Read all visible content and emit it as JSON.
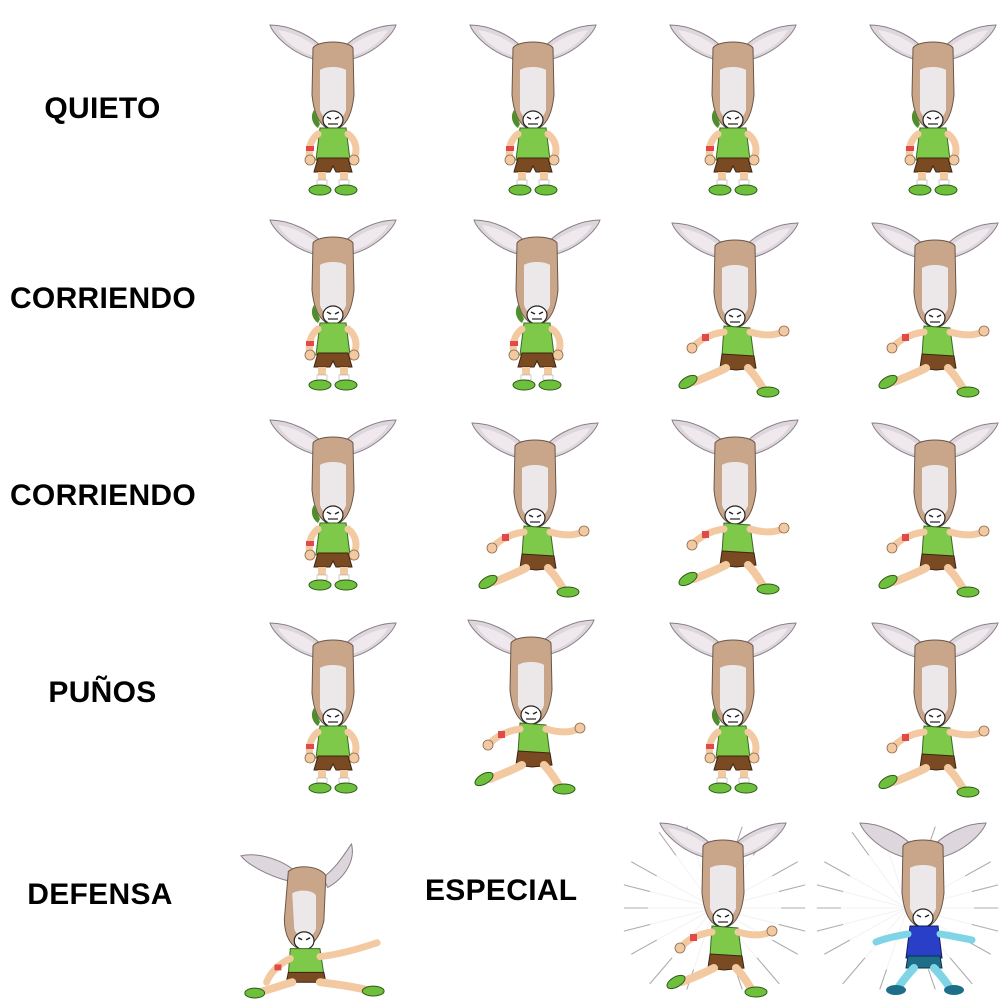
{
  "rows": [
    {
      "label": "QUIETO"
    },
    {
      "label": "CORRIENDO"
    },
    {
      "label": "CORRIENDO"
    },
    {
      "label": "PUÑOS"
    },
    {
      "label": "DEFENSA"
    }
  ],
  "special_label": "ESPECIAL",
  "character": {
    "name_icon": "deer-head-fighter-sprite",
    "colors": {
      "fur": "#c9a68a",
      "fur_light": "#e8e4e6",
      "ear_inner": "#d8d2d8",
      "shirt": "#7fc94a",
      "shirt_dark": "#4e8f2c",
      "shorts": "#7a4a22",
      "skin": "#f2c9a0",
      "shoes": "#6dbf3c",
      "alt_shirt": "#2a3fc8",
      "alt_skin": "#7fd4e6"
    }
  }
}
